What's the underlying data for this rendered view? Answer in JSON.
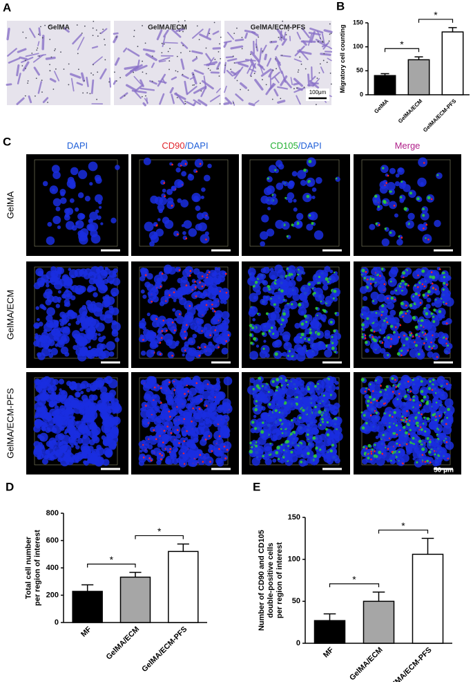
{
  "panel_a": {
    "label": "A",
    "images": [
      "GelMA",
      "GelMA/ECM",
      "GelMA/ECM-PFS"
    ],
    "scale_bar": "100μm"
  },
  "panel_c": {
    "label": "C",
    "columns": [
      {
        "parts": [
          {
            "text": "DAPI",
            "color": "#1f5fd8"
          }
        ]
      },
      {
        "parts": [
          {
            "text": "CD90",
            "color": "#e0242b"
          },
          {
            "text": "/DAPI",
            "color": "#1f5fd8"
          }
        ]
      },
      {
        "parts": [
          {
            "text": "CD105",
            "color": "#23b033"
          },
          {
            "text": "/DAPI",
            "color": "#1f5fd8"
          }
        ]
      },
      {
        "parts": [
          {
            "text": "Merge",
            "color": "#b0208a"
          }
        ]
      }
    ],
    "rows": [
      "GelMA",
      "GelMA/ECM",
      "GelMA/ECM-PFS"
    ],
    "scale_bar": "50 μm"
  },
  "chart_data": [
    {
      "type": "bar",
      "panel_label": "B",
      "ylabel": [
        "Migratory cell counting"
      ],
      "categories": [
        "GelMA",
        "GelMA/ECM",
        "GelMA/ECM-PFS"
      ],
      "values": [
        40,
        73,
        131
      ],
      "errors": [
        4,
        6,
        9
      ],
      "colors": [
        "#000000",
        "#a6a6a6",
        "#ffffff"
      ],
      "ylim": [
        0,
        150
      ],
      "yticks": [
        0,
        50,
        100,
        150
      ],
      "annotations": [
        "*",
        "*"
      ]
    },
    {
      "type": "bar",
      "panel_label": "D",
      "ylabel": [
        "Total cell number",
        "per region of interest"
      ],
      "categories": [
        "MF",
        "GelMA/ECM",
        "GelMA/ECM-PFS"
      ],
      "values": [
        228,
        332,
        520
      ],
      "errors": [
        48,
        35,
        55
      ],
      "colors": [
        "#000000",
        "#a6a6a6",
        "#ffffff"
      ],
      "ylim": [
        0,
        800
      ],
      "yticks": [
        0,
        200,
        400,
        600,
        800
      ],
      "annotations": [
        "*",
        "*"
      ]
    },
    {
      "type": "bar",
      "panel_label": "E",
      "ylabel": [
        "Number of CD90 and CD105",
        "double-positive cells",
        "per region of interest"
      ],
      "categories": [
        "MF",
        "GelMA/ECM",
        "GelMA/ECM-PFS"
      ],
      "values": [
        27,
        50,
        106
      ],
      "errors": [
        8,
        11,
        19
      ],
      "colors": [
        "#000000",
        "#a6a6a6",
        "#ffffff"
      ],
      "ylim": [
        0,
        150
      ],
      "yticks": [
        0,
        50,
        100,
        150
      ],
      "annotations": [
        "*",
        "*"
      ]
    }
  ]
}
